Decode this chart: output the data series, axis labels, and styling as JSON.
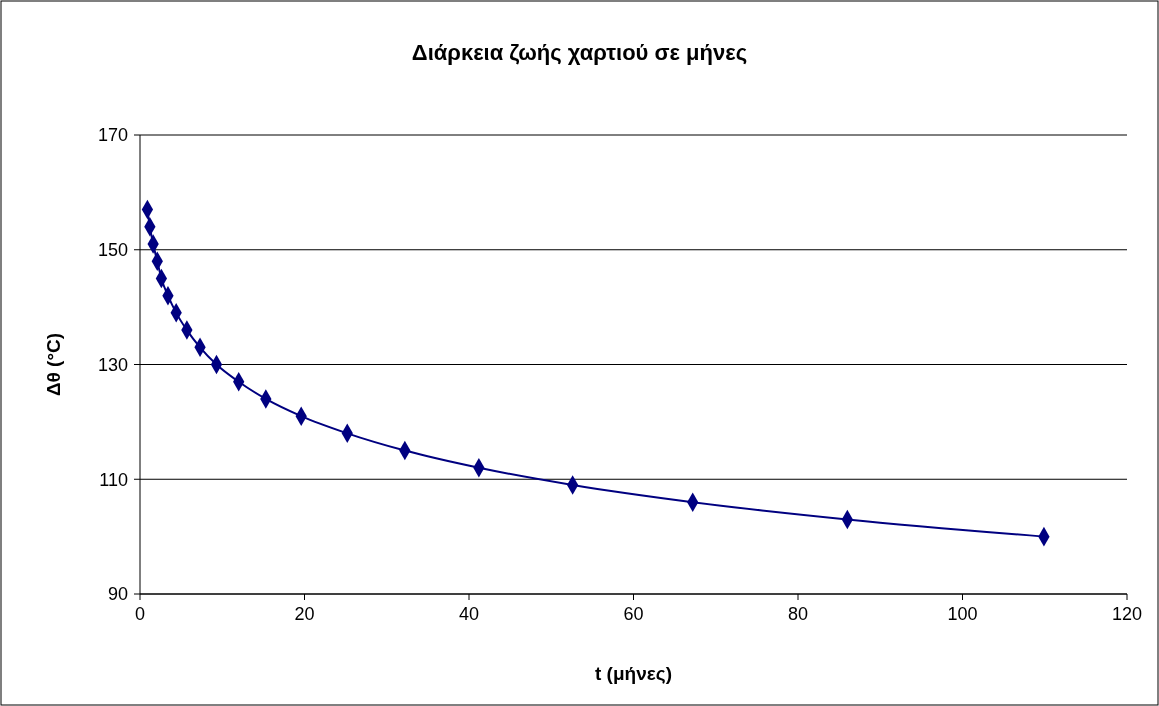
{
  "chart_data": {
    "type": "line",
    "title": "Διάρκεια ζωής χαρτιού σε μήνες",
    "xlabel": "t (μήνες)",
    "ylabel": "Δθ (°C)",
    "x": [
      0.9,
      1.2,
      1.6,
      2.1,
      2.6,
      3.4,
      4.4,
      5.7,
      7.3,
      9.3,
      12,
      15.3,
      19.6,
      25.2,
      32.2,
      41.2,
      52.6,
      67.2,
      86,
      109.9
    ],
    "series": [
      {
        "color": "#000080",
        "values": [
          157,
          154,
          151,
          148,
          145,
          142,
          139,
          136,
          133,
          130,
          127,
          124,
          121,
          118,
          115,
          112,
          109,
          106,
          103,
          100
        ]
      }
    ],
    "xlim": [
      0,
      120
    ],
    "xticks": [
      0,
      20,
      40,
      60,
      80,
      100,
      120
    ],
    "ylim": [
      90,
      170
    ],
    "yticks": [
      90,
      110,
      130,
      150,
      170
    ],
    "grid": "y",
    "marker": "diamond",
    "line_style": "solid"
  }
}
